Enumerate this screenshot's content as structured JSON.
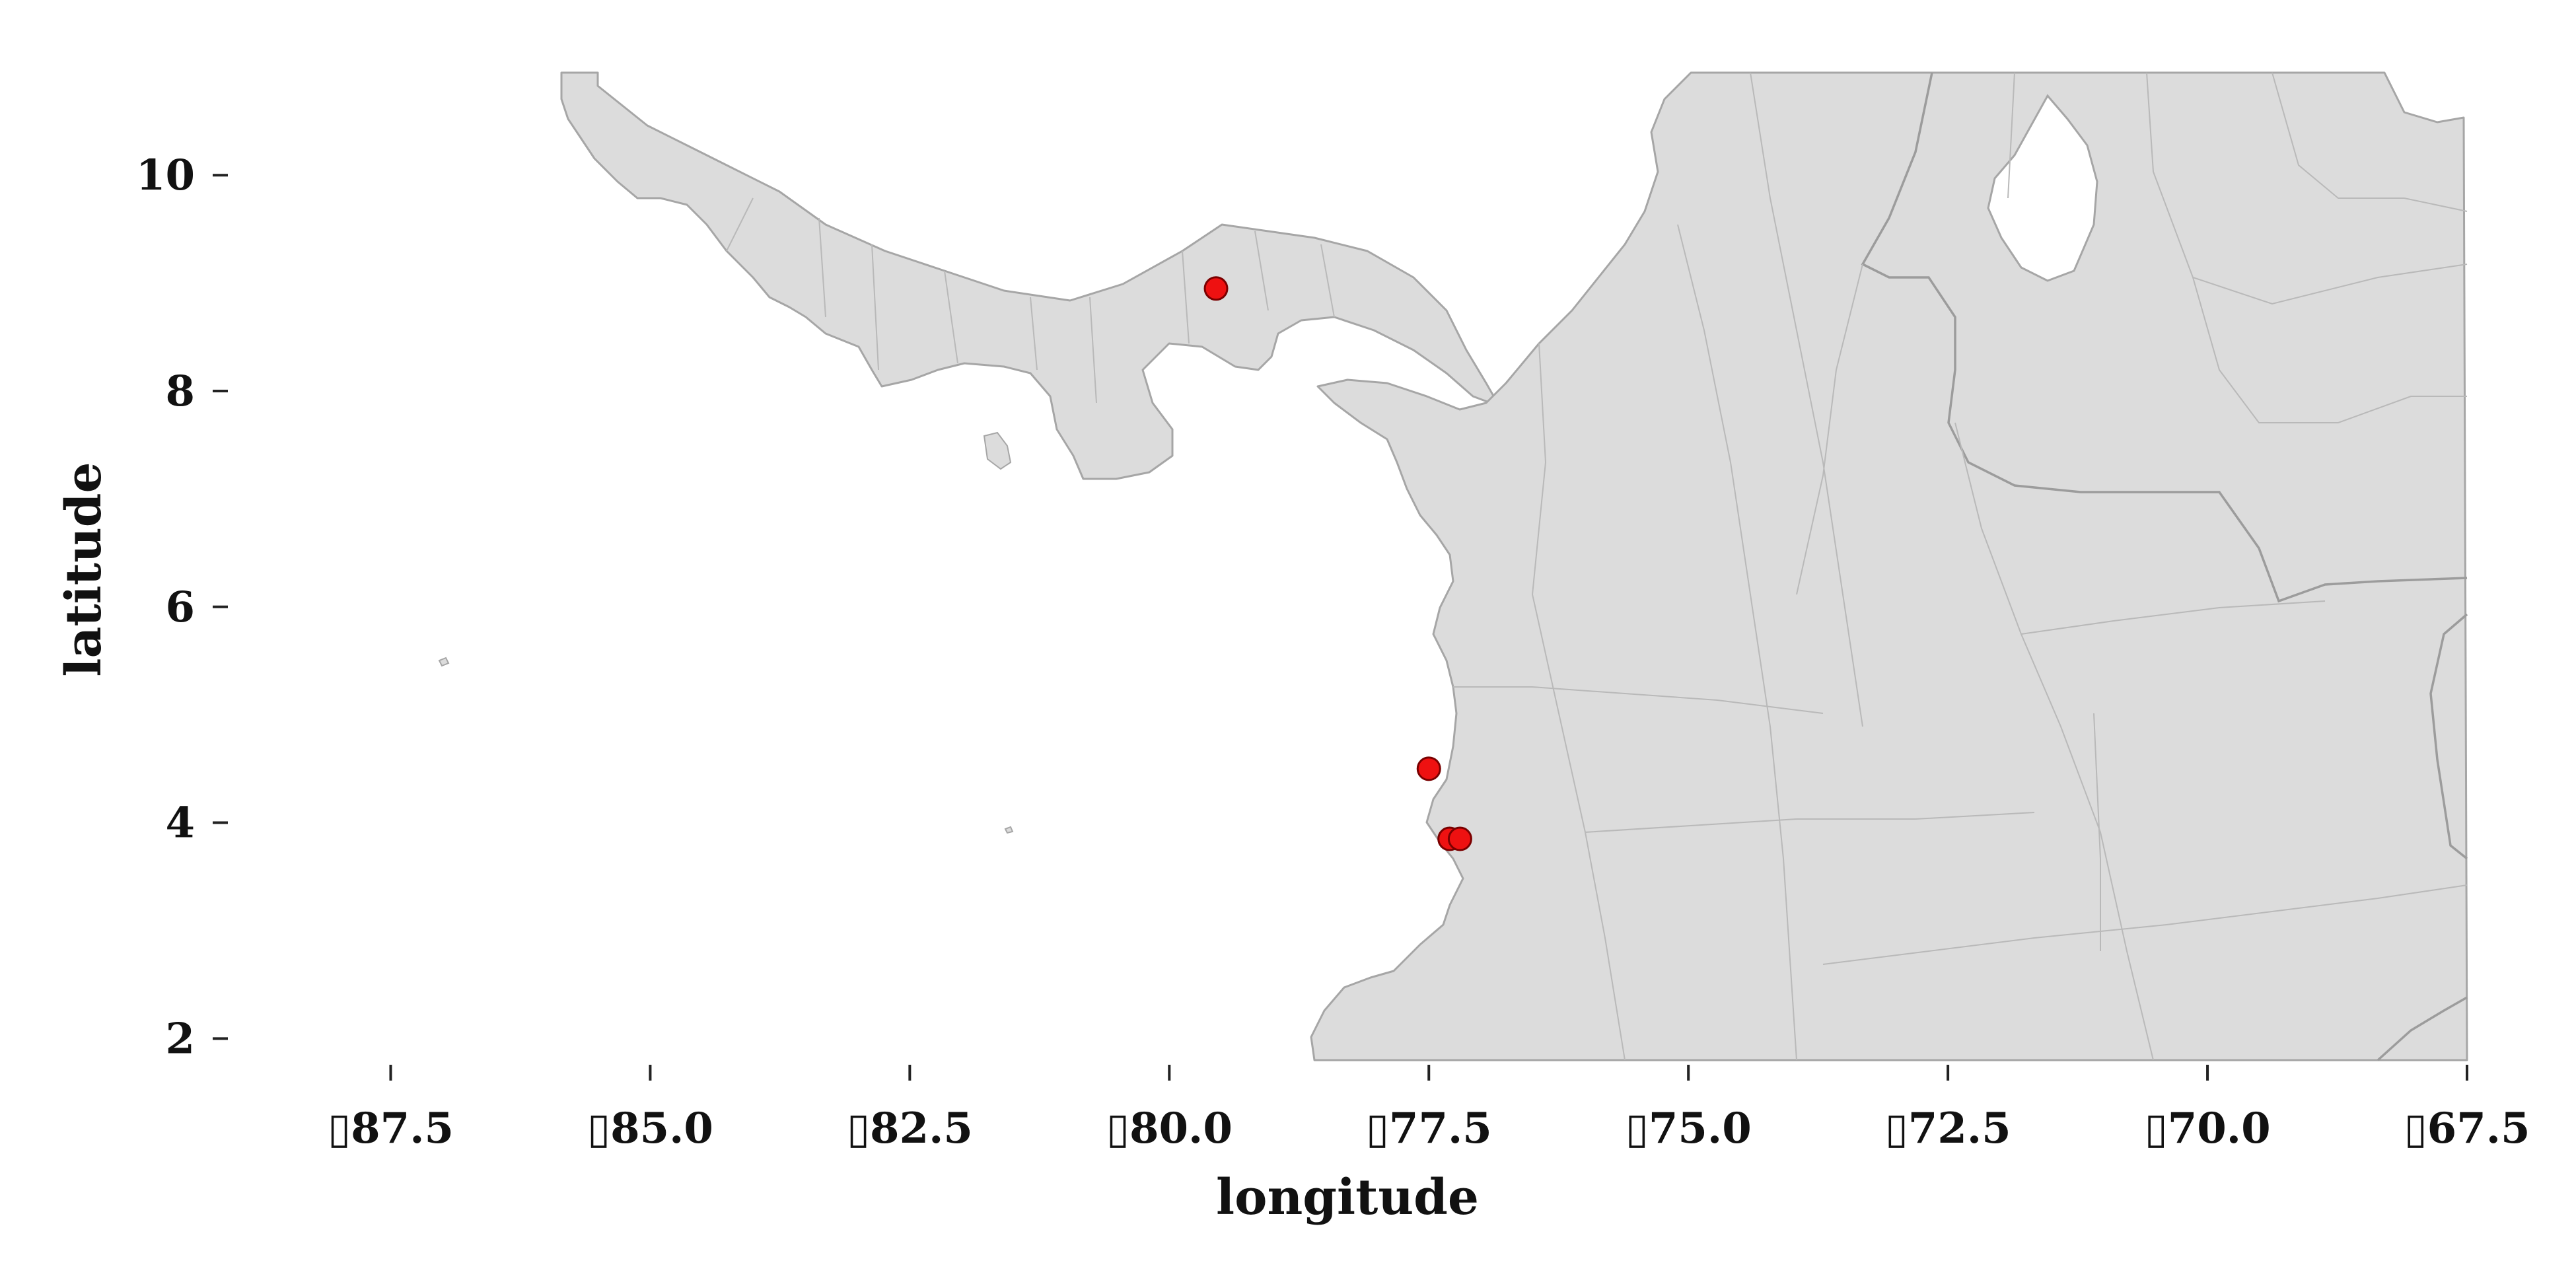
{
  "map": {
    "xlabel": "longitude",
    "ylabel": "latitude",
    "xlim": [
      -89.1,
      -67.5
    ],
    "ylim": [
      1.8,
      10.95
    ],
    "x_ticks": [
      {
        "value": -87.5,
        "label": "▯87.5"
      },
      {
        "value": -85.0,
        "label": "▯85.0"
      },
      {
        "value": -82.5,
        "label": "▯82.5"
      },
      {
        "value": -80.0,
        "label": "▯80.0"
      },
      {
        "value": -77.5,
        "label": "▯77.5"
      },
      {
        "value": -75.0,
        "label": "▯75.0"
      },
      {
        "value": -72.5,
        "label": "▯72.5"
      },
      {
        "value": -70.0,
        "label": "▯70.0"
      },
      {
        "value": -67.5,
        "label": "▯67.5"
      }
    ],
    "y_ticks": [
      {
        "value": 10,
        "label": "10"
      },
      {
        "value": 8,
        "label": "8"
      },
      {
        "value": 6,
        "label": "6"
      },
      {
        "value": 4,
        "label": "4"
      },
      {
        "value": 2,
        "label": "2"
      }
    ],
    "colors": {
      "land": "#dcdcdc",
      "border": "#a6a6a6",
      "point_fill": "#ee1111",
      "point_edge": "#7a0000"
    },
    "points": [
      {
        "lon": -79.55,
        "lat": 8.95
      },
      {
        "lon": -77.5,
        "lat": 4.5
      },
      {
        "lon": -77.3,
        "lat": 3.85
      },
      {
        "lon": -77.2,
        "lat": 3.85
      }
    ]
  }
}
